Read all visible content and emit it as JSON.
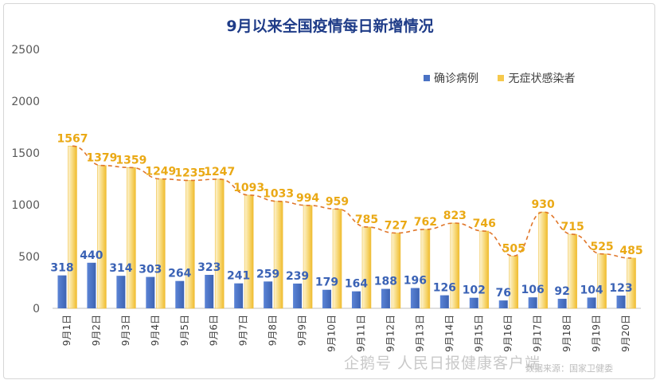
{
  "chart_data": {
    "type": "bar",
    "title": "9月以来全国疫情每日新增情况",
    "categories": [
      "9月1日",
      "9月2日",
      "9月3日",
      "9月4日",
      "9月5日",
      "9月6日",
      "9月7日",
      "9月8日",
      "9月9日",
      "9月10日",
      "9月11日",
      "9月12日",
      "9月13日",
      "9月14日",
      "9月15日",
      "9月16日",
      "9月17日",
      "9月18日",
      "9月19日",
      "9月20日"
    ],
    "series": [
      {
        "name": "确诊病例",
        "values": [
          318,
          440,
          314,
          303,
          264,
          323,
          241,
          259,
          239,
          179,
          164,
          188,
          196,
          126,
          102,
          76,
          106,
          92,
          104,
          123
        ],
        "color": "#4a72c4"
      },
      {
        "name": "无症状感染者",
        "values": [
          1567,
          1379,
          1359,
          1249,
          1235,
          1247,
          1093,
          1033,
          994,
          959,
          785,
          727,
          762,
          823,
          746,
          505,
          930,
          715,
          525,
          485
        ],
        "color": "#f4c342"
      }
    ],
    "trendline": {
      "series": "无症状感染者",
      "style": "dashed",
      "color": "#e0762a"
    },
    "y_ticks": [
      0,
      500,
      1000,
      1500,
      2000,
      2500
    ],
    "ylim": [
      0,
      2500
    ],
    "grid": false,
    "legend_position": "top-right"
  },
  "watermark": "企鹅号 人民日报健康客户端",
  "source_text": "数据来源：国家卫健委"
}
